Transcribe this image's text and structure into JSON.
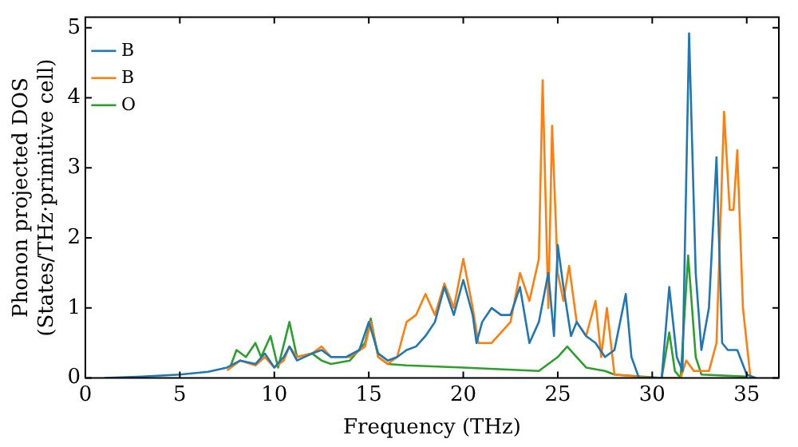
{
  "chart_data": {
    "type": "line",
    "xlabel": "Frequency (THz)",
    "ylabel": "Phonon projected DOS\n(States/THz·primitive cell)",
    "xlim": [
      0,
      36.7
    ],
    "ylim": [
      0,
      5.15
    ],
    "xticks": [
      0,
      5,
      10,
      15,
      20,
      25,
      30,
      35
    ],
    "yticks": [
      0,
      1,
      2,
      3,
      4,
      5
    ],
    "legend": "top left",
    "grid": false,
    "marker": "none",
    "line_style": "solid",
    "series": [
      {
        "name": "B",
        "color": "#1f77b4",
        "x": [
          1,
          3,
          5,
          6.5,
          7.5,
          8.2,
          9,
          9.5,
          10,
          10.5,
          10.8,
          11.2,
          12,
          12.5,
          13,
          13.8,
          14.5,
          15,
          15.5,
          16,
          16.5,
          17,
          17.5,
          18,
          18.5,
          19,
          19.5,
          20,
          20.5,
          20.7,
          21,
          21.5,
          22,
          22.5,
          23,
          23.5,
          24,
          24.5,
          24.8,
          25,
          25.3,
          25.7,
          26,
          26.5,
          27,
          27.5,
          28,
          28.6,
          28.9,
          29.3,
          30.5,
          30.9,
          31.3,
          31.6,
          31.95,
          32.3,
          32.6,
          33,
          33.4,
          33.7,
          34,
          34.5,
          35,
          35.5
        ],
        "values": [
          0,
          0.02,
          0.05,
          0.09,
          0.15,
          0.25,
          0.2,
          0.35,
          0.15,
          0.3,
          0.45,
          0.25,
          0.35,
          0.4,
          0.3,
          0.3,
          0.4,
          0.8,
          0.35,
          0.25,
          0.3,
          0.4,
          0.45,
          0.6,
          0.8,
          1.3,
          0.9,
          1.4,
          0.9,
          0.5,
          0.8,
          1.0,
          0.9,
          0.9,
          1.3,
          0.5,
          0.8,
          1.5,
          0.6,
          1.9,
          1.3,
          0.6,
          0.8,
          0.6,
          0.5,
          0.3,
          0.4,
          1.2,
          0.3,
          0,
          0,
          1.3,
          0.3,
          0.1,
          4.92,
          1.5,
          0.4,
          1.0,
          3.15,
          0.5,
          0.4,
          0.4,
          0.05,
          0
        ]
      },
      {
        "name": "B",
        "color": "#ff7f0e",
        "x": [
          7.5,
          8.2,
          9,
          9.5,
          10,
          10.5,
          10.8,
          11.2,
          12,
          12.5,
          13,
          14,
          14.8,
          15.1,
          15.5,
          16,
          16.5,
          17,
          17.5,
          18,
          18.5,
          19,
          19.5,
          20,
          20.5,
          20.8,
          21.5,
          22.5,
          23,
          23.5,
          24,
          24.2,
          24.5,
          24.7,
          25,
          25.3,
          25.6,
          26,
          26.5,
          27,
          27.3,
          27.6,
          28,
          30,
          31.5,
          31.8,
          32.2,
          33,
          33.4,
          33.8,
          34.1,
          34.3,
          34.5,
          34.8,
          35.2
        ],
        "values": [
          0.11,
          0.25,
          0.18,
          0.3,
          0.15,
          0.25,
          0.45,
          0.3,
          0.35,
          0.45,
          0.3,
          0.3,
          0.45,
          0.8,
          0.3,
          0.2,
          0.3,
          0.8,
          0.9,
          1.2,
          0.9,
          1.35,
          1.0,
          1.7,
          1.0,
          0.5,
          0.5,
          0.8,
          1.5,
          1.1,
          1.7,
          4.25,
          1.0,
          3.6,
          1.5,
          1.1,
          1.6,
          0.8,
          0.6,
          1.1,
          0.3,
          1.0,
          0.05,
          0,
          0,
          0.25,
          0.1,
          0.1,
          0.5,
          3.8,
          2.4,
          2.4,
          3.25,
          1.0,
          0
        ]
      },
      {
        "name": "O",
        "color": "#2ca02c",
        "x": [
          7.7,
          8,
          8.5,
          9,
          9.3,
          9.8,
          10.2,
          10.8,
          11.2,
          12,
          12.5,
          13,
          14,
          14.8,
          15.1,
          15.5,
          16,
          17,
          20,
          24,
          25,
          25.5,
          26,
          26.5,
          27.5,
          28,
          30.5,
          30.9,
          31.2,
          31.5,
          31.9,
          32.3,
          32.6,
          35
        ],
        "values": [
          0.18,
          0.4,
          0.3,
          0.5,
          0.3,
          0.6,
          0.15,
          0.8,
          0.3,
          0.35,
          0.25,
          0.2,
          0.25,
          0.5,
          0.85,
          0.3,
          0.2,
          0.18,
          0.15,
          0.1,
          0.3,
          0.45,
          0.3,
          0.15,
          0.1,
          0.05,
          0,
          0.65,
          0.1,
          0,
          1.75,
          0.3,
          0.05,
          0.02
        ]
      }
    ]
  }
}
